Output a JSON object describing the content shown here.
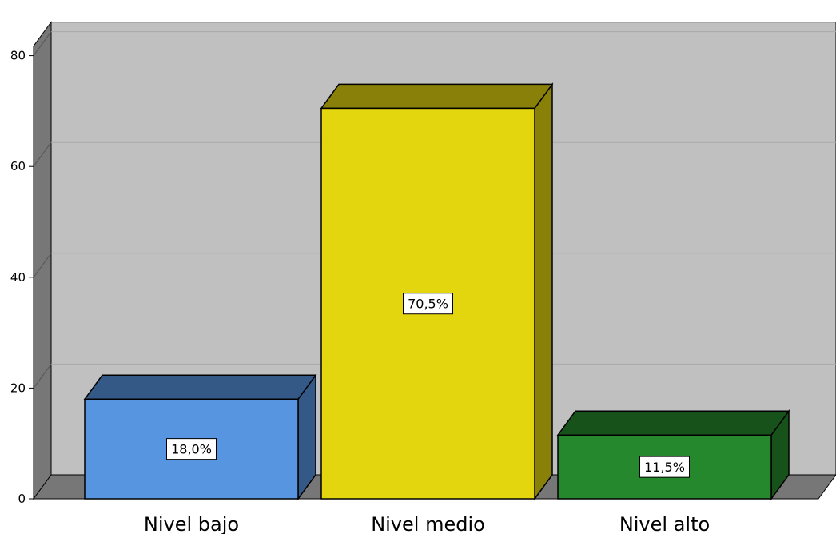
{
  "chart_data": {
    "type": "bar",
    "categories": [
      "Nivel bajo",
      "Nivel medio",
      "Nivel alto"
    ],
    "values": [
      18.0,
      70.5,
      11.5
    ],
    "data_labels": [
      "18,0%",
      "70,5%",
      "11,5%"
    ],
    "ylim": [
      0,
      80
    ],
    "yticks": [
      0,
      20,
      40,
      60,
      80
    ],
    "ytick_labels": [
      "0",
      "20",
      "40",
      "60",
      "80"
    ],
    "grid": true,
    "legend": "none",
    "colors": {
      "series": [
        "#5795e0",
        "#e3d60e",
        "#26882c"
      ],
      "wall": "#c0c0c0",
      "wall_side": "#777777",
      "gridline": "#a9a9a9"
    }
  }
}
